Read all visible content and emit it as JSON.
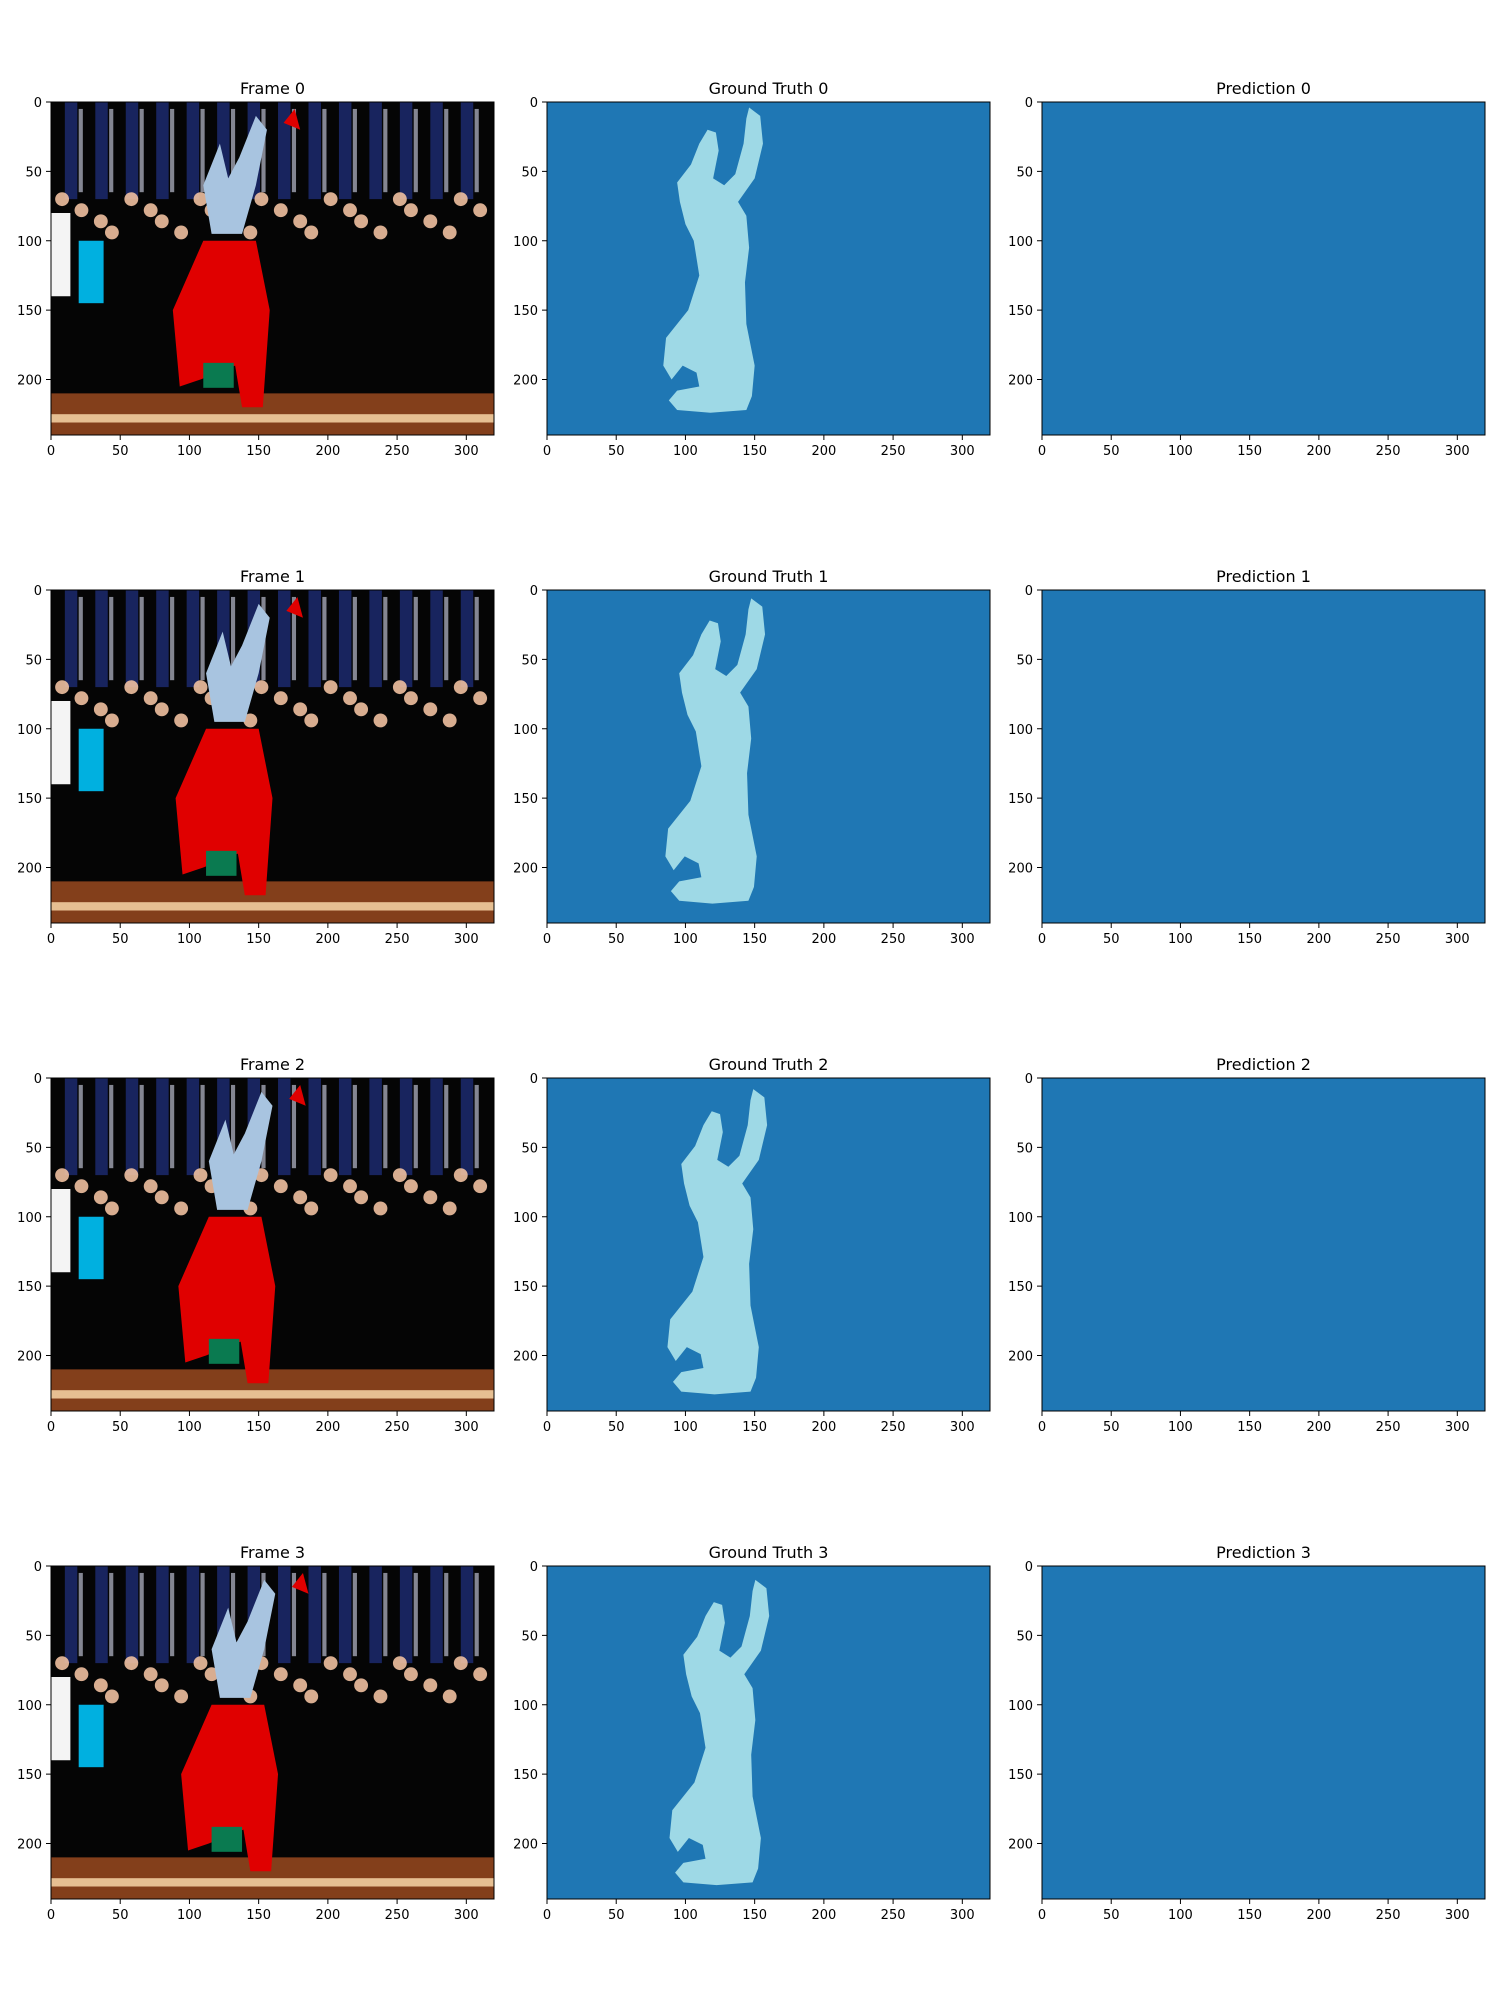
{
  "figure": {
    "background": "#ffffff",
    "colors": {
      "mask_background": "#1f77b4",
      "mask_foreground": "#9ed9e6",
      "photo_dark": "#050505",
      "dancer_shirt": "#e00000",
      "dancer_jeans": "#a8c4e0",
      "building": "#1c2a6e",
      "floor": "#9a4a20"
    }
  },
  "chart_data": [
    {
      "type": "image",
      "title": "Frame 0",
      "content": "photo",
      "xlim": [
        0,
        320
      ],
      "ylim": [
        240,
        0
      ],
      "xticks": [
        0,
        50,
        100,
        150,
        200,
        250,
        300
      ],
      "yticks": [
        0,
        50,
        100,
        150,
        200
      ]
    },
    {
      "type": "image",
      "title": "Ground Truth 0",
      "content": "mask",
      "xlim": [
        0,
        320
      ],
      "ylim": [
        240,
        0
      ],
      "xticks": [
        0,
        50,
        100,
        150,
        200,
        250,
        300
      ],
      "yticks": [
        0,
        50,
        100,
        150,
        200
      ]
    },
    {
      "type": "image",
      "title": "Prediction 0",
      "content": "empty",
      "xlim": [
        0,
        320
      ],
      "ylim": [
        240,
        0
      ],
      "xticks": [
        0,
        50,
        100,
        150,
        200,
        250,
        300
      ],
      "yticks": [
        0,
        50,
        100,
        150,
        200
      ]
    },
    {
      "type": "image",
      "title": "Frame 1",
      "content": "photo",
      "xlim": [
        0,
        320
      ],
      "ylim": [
        240,
        0
      ],
      "xticks": [
        0,
        50,
        100,
        150,
        200,
        250,
        300
      ],
      "yticks": [
        0,
        50,
        100,
        150,
        200
      ]
    },
    {
      "type": "image",
      "title": "Ground Truth 1",
      "content": "mask",
      "xlim": [
        0,
        320
      ],
      "ylim": [
        240,
        0
      ],
      "xticks": [
        0,
        50,
        100,
        150,
        200,
        250,
        300
      ],
      "yticks": [
        0,
        50,
        100,
        150,
        200
      ]
    },
    {
      "type": "image",
      "title": "Prediction 1",
      "content": "empty",
      "xlim": [
        0,
        320
      ],
      "ylim": [
        240,
        0
      ],
      "xticks": [
        0,
        50,
        100,
        150,
        200,
        250,
        300
      ],
      "yticks": [
        0,
        50,
        100,
        150,
        200
      ]
    },
    {
      "type": "image",
      "title": "Frame 2",
      "content": "photo",
      "xlim": [
        0,
        320
      ],
      "ylim": [
        240,
        0
      ],
      "xticks": [
        0,
        50,
        100,
        150,
        200,
        250,
        300
      ],
      "yticks": [
        0,
        50,
        100,
        150,
        200
      ]
    },
    {
      "type": "image",
      "title": "Ground Truth 2",
      "content": "mask",
      "xlim": [
        0,
        320
      ],
      "ylim": [
        240,
        0
      ],
      "xticks": [
        0,
        50,
        100,
        150,
        200,
        250,
        300
      ],
      "yticks": [
        0,
        50,
        100,
        150,
        200
      ]
    },
    {
      "type": "image",
      "title": "Prediction 2",
      "content": "empty",
      "xlim": [
        0,
        320
      ],
      "ylim": [
        240,
        0
      ],
      "xticks": [
        0,
        50,
        100,
        150,
        200,
        250,
        300
      ],
      "yticks": [
        0,
        50,
        100,
        150,
        200
      ]
    },
    {
      "type": "image",
      "title": "Frame 3",
      "content": "photo",
      "xlim": [
        0,
        320
      ],
      "ylim": [
        240,
        0
      ],
      "xticks": [
        0,
        50,
        100,
        150,
        200,
        250,
        300
      ],
      "yticks": [
        0,
        50,
        100,
        150,
        200
      ]
    },
    {
      "type": "image",
      "title": "Ground Truth 3",
      "content": "mask",
      "xlim": [
        0,
        320
      ],
      "ylim": [
        240,
        0
      ],
      "xticks": [
        0,
        50,
        100,
        150,
        200,
        250,
        300
      ],
      "yticks": [
        0,
        50,
        100,
        150,
        200
      ]
    },
    {
      "type": "image",
      "title": "Prediction 3",
      "content": "empty",
      "xlim": [
        0,
        320
      ],
      "ylim": [
        240,
        0
      ],
      "xticks": [
        0,
        50,
        100,
        150,
        200,
        250,
        300
      ],
      "yticks": [
        0,
        50,
        100,
        150,
        200
      ]
    }
  ]
}
